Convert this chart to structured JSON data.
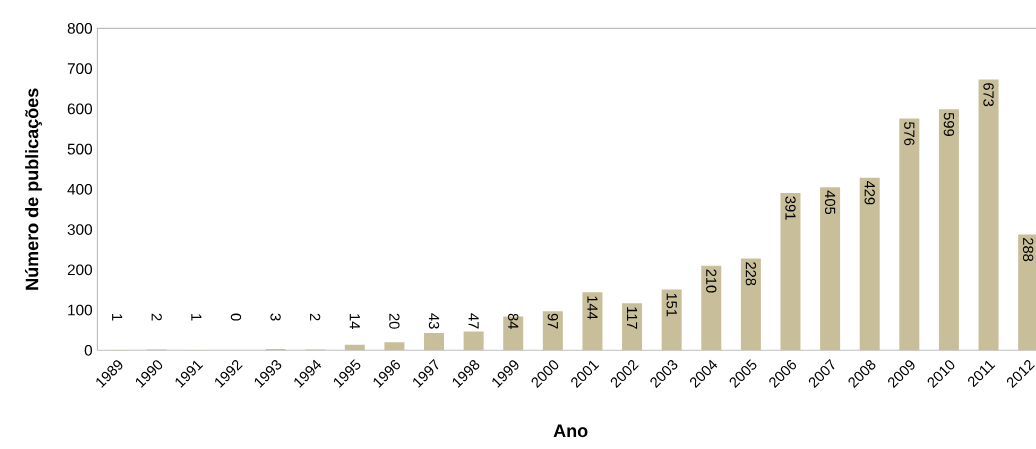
{
  "chart_data": {
    "type": "bar",
    "xlabel": "Ano",
    "ylabel": "Número de publicações",
    "categories": [
      "1989",
      "1990",
      "1991",
      "1992",
      "1993",
      "1994",
      "1995",
      "1996",
      "1997",
      "1998",
      "1999",
      "2000",
      "2001",
      "2002",
      "2003",
      "2004",
      "2005",
      "2006",
      "2007",
      "2008",
      "2009",
      "2010",
      "2011",
      "2012"
    ],
    "values": [
      1,
      2,
      1,
      0,
      3,
      2,
      14,
      20,
      43,
      47,
      84,
      97,
      144,
      117,
      151,
      210,
      228,
      391,
      405,
      429,
      576,
      599,
      673,
      288
    ],
    "color": "#c8bf9a",
    "ylim": [
      0,
      800
    ],
    "yticks": [
      0,
      100,
      200,
      300,
      400,
      500,
      600,
      700,
      800
    ],
    "data_labels": true
  }
}
